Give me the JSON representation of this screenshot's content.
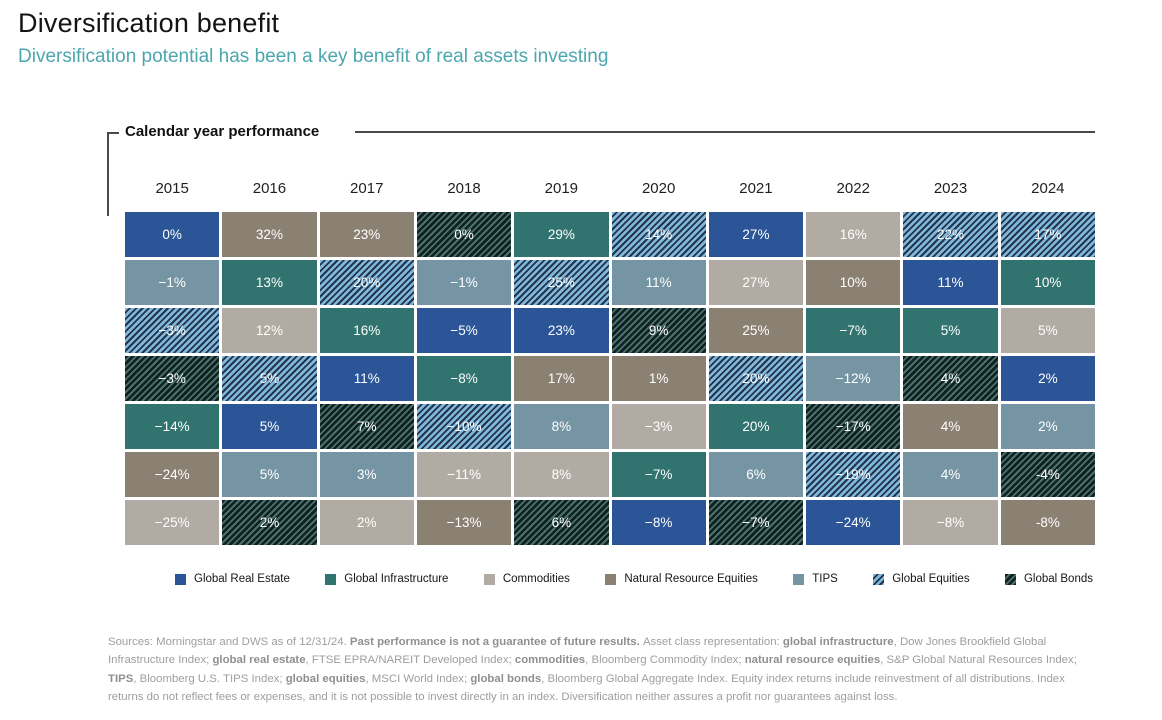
{
  "header": {
    "title": "Diversification benefit",
    "subtitle": "Diversification potential has been a key benefit of real assets investing"
  },
  "colors": {
    "subtitle_teal": "#4BA6AE",
    "footnote_gray": "#9E9E9E",
    "rule_dark": "#4A4A4A"
  },
  "chart_data": {
    "type": "heatmap",
    "panel_label": "Calendar year performance",
    "years": [
      "2015",
      "2016",
      "2017",
      "2018",
      "2019",
      "2020",
      "2021",
      "2022",
      "2023",
      "2024"
    ],
    "assets": {
      "re": {
        "label": "Global Real Estate",
        "color": "#2B5597",
        "pattern": "solid"
      },
      "infra": {
        "label": "Global Infrastructure",
        "color": "#31736F",
        "pattern": "solid"
      },
      "com": {
        "label": "Commodities",
        "color": "#B2ABA3",
        "pattern": "solid"
      },
      "nr": {
        "label": "Natural Resource Equities",
        "color": "#8B8173",
        "pattern": "solid"
      },
      "tips": {
        "label": "TIPS",
        "color": "#7695A4",
        "pattern": "solid"
      },
      "eq": {
        "label": "Global Equities",
        "color": "#7FB8DC",
        "stripe": "#233349",
        "pattern": "hatch"
      },
      "bd": {
        "label": "Global Bonds",
        "color": "#0F201F",
        "stripe": "#4A7370",
        "pattern": "hatch"
      }
    },
    "legend_order": [
      "re",
      "infra",
      "com",
      "nr",
      "tips",
      "eq",
      "bd"
    ],
    "cells": {
      "2015": [
        {
          "v": "0%",
          "a": "re"
        },
        {
          "v": "−1%",
          "a": "tips"
        },
        {
          "v": "−3%",
          "a": "eq"
        },
        {
          "v": "−3%",
          "a": "bd"
        },
        {
          "v": "−14%",
          "a": "infra"
        },
        {
          "v": "−24%",
          "a": "nr"
        },
        {
          "v": "−25%",
          "a": "com"
        }
      ],
      "2016": [
        {
          "v": "32%",
          "a": "nr"
        },
        {
          "v": "13%",
          "a": "infra"
        },
        {
          "v": "12%",
          "a": "com"
        },
        {
          "v": "5%",
          "a": "eq"
        },
        {
          "v": "5%",
          "a": "re"
        },
        {
          "v": "5%",
          "a": "tips"
        },
        {
          "v": "2%",
          "a": "bd"
        }
      ],
      "2017": [
        {
          "v": "23%",
          "a": "nr"
        },
        {
          "v": "20%",
          "a": "eq"
        },
        {
          "v": "16%",
          "a": "infra"
        },
        {
          "v": "11%",
          "a": "re"
        },
        {
          "v": "7%",
          "a": "bd"
        },
        {
          "v": "3%",
          "a": "tips"
        },
        {
          "v": "2%",
          "a": "com"
        }
      ],
      "2018": [
        {
          "v": "0%",
          "a": "bd"
        },
        {
          "v": "−1%",
          "a": "tips"
        },
        {
          "v": "−5%",
          "a": "re"
        },
        {
          "v": "−8%",
          "a": "infra"
        },
        {
          "v": "−10%",
          "a": "eq"
        },
        {
          "v": "−11%",
          "a": "com"
        },
        {
          "v": "−13%",
          "a": "nr"
        }
      ],
      "2019": [
        {
          "v": "29%",
          "a": "infra"
        },
        {
          "v": "25%",
          "a": "eq"
        },
        {
          "v": "23%",
          "a": "re"
        },
        {
          "v": "17%",
          "a": "nr"
        },
        {
          "v": "8%",
          "a": "tips"
        },
        {
          "v": "8%",
          "a": "com"
        },
        {
          "v": "6%",
          "a": "bd"
        }
      ],
      "2020": [
        {
          "v": "14%",
          "a": "eq"
        },
        {
          "v": "11%",
          "a": "tips"
        },
        {
          "v": "9%",
          "a": "bd"
        },
        {
          "v": "1%",
          "a": "nr"
        },
        {
          "v": "−3%",
          "a": "com"
        },
        {
          "v": "−7%",
          "a": "infra"
        },
        {
          "v": "−8%",
          "a": "re"
        }
      ],
      "2021": [
        {
          "v": "27%",
          "a": "re"
        },
        {
          "v": "27%",
          "a": "com"
        },
        {
          "v": "25%",
          "a": "nr"
        },
        {
          "v": "20%",
          "a": "eq"
        },
        {
          "v": "20%",
          "a": "infra"
        },
        {
          "v": "6%",
          "a": "tips"
        },
        {
          "v": "−7%",
          "a": "bd"
        }
      ],
      "2022": [
        {
          "v": "16%",
          "a": "com"
        },
        {
          "v": "10%",
          "a": "nr"
        },
        {
          "v": "−7%",
          "a": "infra"
        },
        {
          "v": "−12%",
          "a": "tips"
        },
        {
          "v": "−17%",
          "a": "bd"
        },
        {
          "v": "−19%",
          "a": "eq"
        },
        {
          "v": "−24%",
          "a": "re"
        }
      ],
      "2023": [
        {
          "v": "22%",
          "a": "eq"
        },
        {
          "v": "11%",
          "a": "re"
        },
        {
          "v": "5%",
          "a": "infra"
        },
        {
          "v": "4%",
          "a": "bd"
        },
        {
          "v": "4%",
          "a": "nr"
        },
        {
          "v": "4%",
          "a": "tips"
        },
        {
          "v": "−8%",
          "a": "com"
        }
      ],
      "2024": [
        {
          "v": "17%",
          "a": "eq"
        },
        {
          "v": "10%",
          "a": "infra"
        },
        {
          "v": "5%",
          "a": "com"
        },
        {
          "v": "2%",
          "a": "re"
        },
        {
          "v": "2%",
          "a": "tips"
        },
        {
          "v": "-4%",
          "a": "bd"
        },
        {
          "v": "-8%",
          "a": "nr"
        }
      ]
    }
  },
  "footnote": {
    "segments": [
      {
        "t": "Sources: Morningstar and DWS as of 12/31/24. ",
        "b": false
      },
      {
        "t": "Past performance is not a guarantee of future results. ",
        "b": true
      },
      {
        "t": "Asset class representation: ",
        "b": false
      },
      {
        "t": "global infrastructure",
        "b": true
      },
      {
        "t": ", Dow Jones Brookfield Global Infrastructure Index; ",
        "b": false
      },
      {
        "t": "global real estate",
        "b": true
      },
      {
        "t": ", FTSE EPRA/NAREIT Developed Index; ",
        "b": false
      },
      {
        "t": "commodities",
        "b": true
      },
      {
        "t": ", Bloomberg Commodity Index; ",
        "b": false
      },
      {
        "t": "natural resource equities",
        "b": true
      },
      {
        "t": ", S&P Global Natural Resources Index; ",
        "b": false
      },
      {
        "t": "TIPS",
        "b": true
      },
      {
        "t": ", Bloomberg U.S. TIPS Index; ",
        "b": false
      },
      {
        "t": "global equities",
        "b": true
      },
      {
        "t": ", MSCI World Index; ",
        "b": false
      },
      {
        "t": "global bonds",
        "b": true
      },
      {
        "t": ", Bloomberg Global Aggregate Index. Equity index returns include reinvestment of all distributions. Index returns do not reflect fees or expenses, and it is not possible to invest directly in an index. Diversification neither assures a profit nor guarantees against loss.",
        "b": false
      }
    ]
  }
}
